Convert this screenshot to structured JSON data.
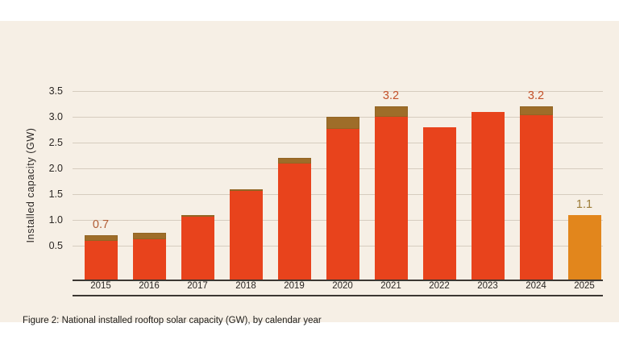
{
  "colors": {
    "background": "#f6efe5",
    "page_margin": "#ffffff",
    "bar_red": "#e8431c",
    "bar_orange_2025": "#e2861c",
    "bar_cap_brown": "#9e6d29",
    "gridline": "#d6ccbf",
    "axis_line": "#3c3733",
    "axis_text": "#2b2724",
    "caption_text": "#1d1c1a"
  },
  "chart_data": {
    "type": "bar",
    "title": "",
    "xlabel": "",
    "ylabel": "Installed capacity (GW)",
    "ylim": [
      0,
      3.5
    ],
    "grid": "horizontal",
    "legend": "none",
    "yticks": [
      0.5,
      1.0,
      1.5,
      2.0,
      2.5,
      3.0,
      3.5
    ],
    "ytick_labels": [
      "0.5",
      "1.0",
      "1.5",
      "2.0",
      "2.5",
      "3.0",
      "3.5"
    ],
    "categories": [
      "2015",
      "2016",
      "2017",
      "2018",
      "2019",
      "2020",
      "2021",
      "2022",
      "2023",
      "2024",
      "2025"
    ],
    "values": [
      0.7,
      0.75,
      1.1,
      1.6,
      2.2,
      3.0,
      3.2,
      2.8,
      3.1,
      3.2,
      1.1
    ],
    "bars": [
      {
        "year": "2015",
        "value": 0.7,
        "body_value": 0.59,
        "has_cap": true,
        "color": "#e8431c",
        "cap_color": "#9e6d29",
        "label": "0.7",
        "label_color": "#b05c35"
      },
      {
        "year": "2016",
        "value": 0.75,
        "body_value": 0.62,
        "has_cap": true,
        "color": "#e8431c",
        "cap_color": "#9e6d29",
        "label": null,
        "label_color": null
      },
      {
        "year": "2017",
        "value": 1.1,
        "body_value": 1.07,
        "has_cap": true,
        "color": "#e8431c",
        "cap_color": "#9e6d29",
        "label": null,
        "label_color": null
      },
      {
        "year": "2018",
        "value": 1.6,
        "body_value": 1.57,
        "has_cap": true,
        "color": "#e8431c",
        "cap_color": "#9e6d29",
        "label": null,
        "label_color": null
      },
      {
        "year": "2019",
        "value": 2.2,
        "body_value": 2.1,
        "has_cap": true,
        "color": "#e8431c",
        "cap_color": "#9e6d29",
        "label": null,
        "label_color": null
      },
      {
        "year": "2020",
        "value": 3.0,
        "body_value": 2.77,
        "has_cap": true,
        "color": "#e8431c",
        "cap_color": "#9e6d29",
        "label": null,
        "label_color": null
      },
      {
        "year": "2021",
        "value": 3.2,
        "body_value": 3.0,
        "has_cap": true,
        "color": "#e8431c",
        "cap_color": "#9e6d29",
        "label": "3.2",
        "label_color": "#c35129"
      },
      {
        "year": "2022",
        "value": 2.8,
        "body_value": 2.8,
        "has_cap": false,
        "color": "#e8431c",
        "cap_color": null,
        "label": null,
        "label_color": null
      },
      {
        "year": "2023",
        "value": 3.1,
        "body_value": 3.1,
        "has_cap": false,
        "color": "#e8431c",
        "cap_color": null,
        "label": null,
        "label_color": null
      },
      {
        "year": "2024",
        "value": 3.2,
        "body_value": 3.03,
        "has_cap": true,
        "color": "#e8431c",
        "cap_color": "#9e6d29",
        "label": "3.2",
        "label_color": "#c35129"
      },
      {
        "year": "2025",
        "value": 1.1,
        "body_value": 1.1,
        "has_cap": false,
        "color": "#e2861c",
        "cap_color": null,
        "label": "1.1",
        "label_color": "#9d7c38"
      }
    ]
  },
  "caption": "Figure 2: National installed rooftop solar capacity (GW), by calendar year"
}
